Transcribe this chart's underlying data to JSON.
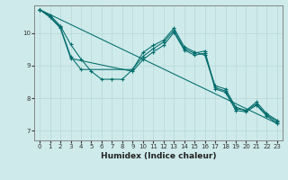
{
  "background_color": "#ceeaea",
  "grid_color": "#b8d8d8",
  "line_color": "#006b6b",
  "xlabel": "Humidex (Indice chaleur)",
  "xlim": [
    -0.5,
    23.5
  ],
  "ylim": [
    6.7,
    10.85
  ],
  "yticks": [
    7,
    8,
    9,
    10
  ],
  "xticks": [
    0,
    1,
    2,
    3,
    4,
    5,
    6,
    7,
    8,
    9,
    10,
    11,
    12,
    13,
    14,
    15,
    16,
    17,
    18,
    19,
    20,
    21,
    22,
    23
  ],
  "series": [
    {
      "x": [
        0,
        1,
        2,
        3,
        4,
        5,
        6,
        7,
        8,
        9,
        10,
        11,
        12,
        13,
        14,
        15,
        16,
        17,
        18,
        19,
        20,
        21,
        22,
        23
      ],
      "y": [
        10.72,
        10.55,
        10.22,
        9.65,
        9.2,
        8.82,
        8.58,
        8.58,
        8.58,
        8.88,
        9.4,
        9.62,
        9.78,
        10.15,
        9.58,
        9.42,
        9.32,
        8.38,
        8.28,
        7.72,
        7.62,
        7.88,
        7.52,
        7.32
      ]
    },
    {
      "x": [
        0,
        1,
        2,
        3,
        4,
        9,
        10,
        11,
        12,
        13,
        14,
        15,
        16,
        17,
        18,
        19,
        20,
        21,
        22,
        23
      ],
      "y": [
        10.72,
        10.52,
        10.18,
        9.28,
        8.88,
        8.88,
        9.28,
        9.52,
        9.72,
        10.08,
        9.52,
        9.38,
        9.45,
        8.32,
        8.22,
        7.68,
        7.62,
        7.82,
        7.48,
        7.28
      ]
    },
    {
      "x": [
        0,
        1,
        2,
        3,
        9,
        10,
        11,
        12,
        13,
        14,
        15,
        16,
        17,
        18,
        19,
        20,
        21,
        22,
        23
      ],
      "y": [
        10.72,
        10.48,
        10.15,
        9.22,
        8.82,
        9.18,
        9.42,
        9.62,
        10.02,
        9.48,
        9.32,
        9.38,
        8.28,
        8.18,
        7.62,
        7.58,
        7.78,
        7.45,
        7.22
      ]
    },
    {
      "x": [
        0,
        23
      ],
      "y": [
        10.72,
        7.22
      ]
    }
  ]
}
